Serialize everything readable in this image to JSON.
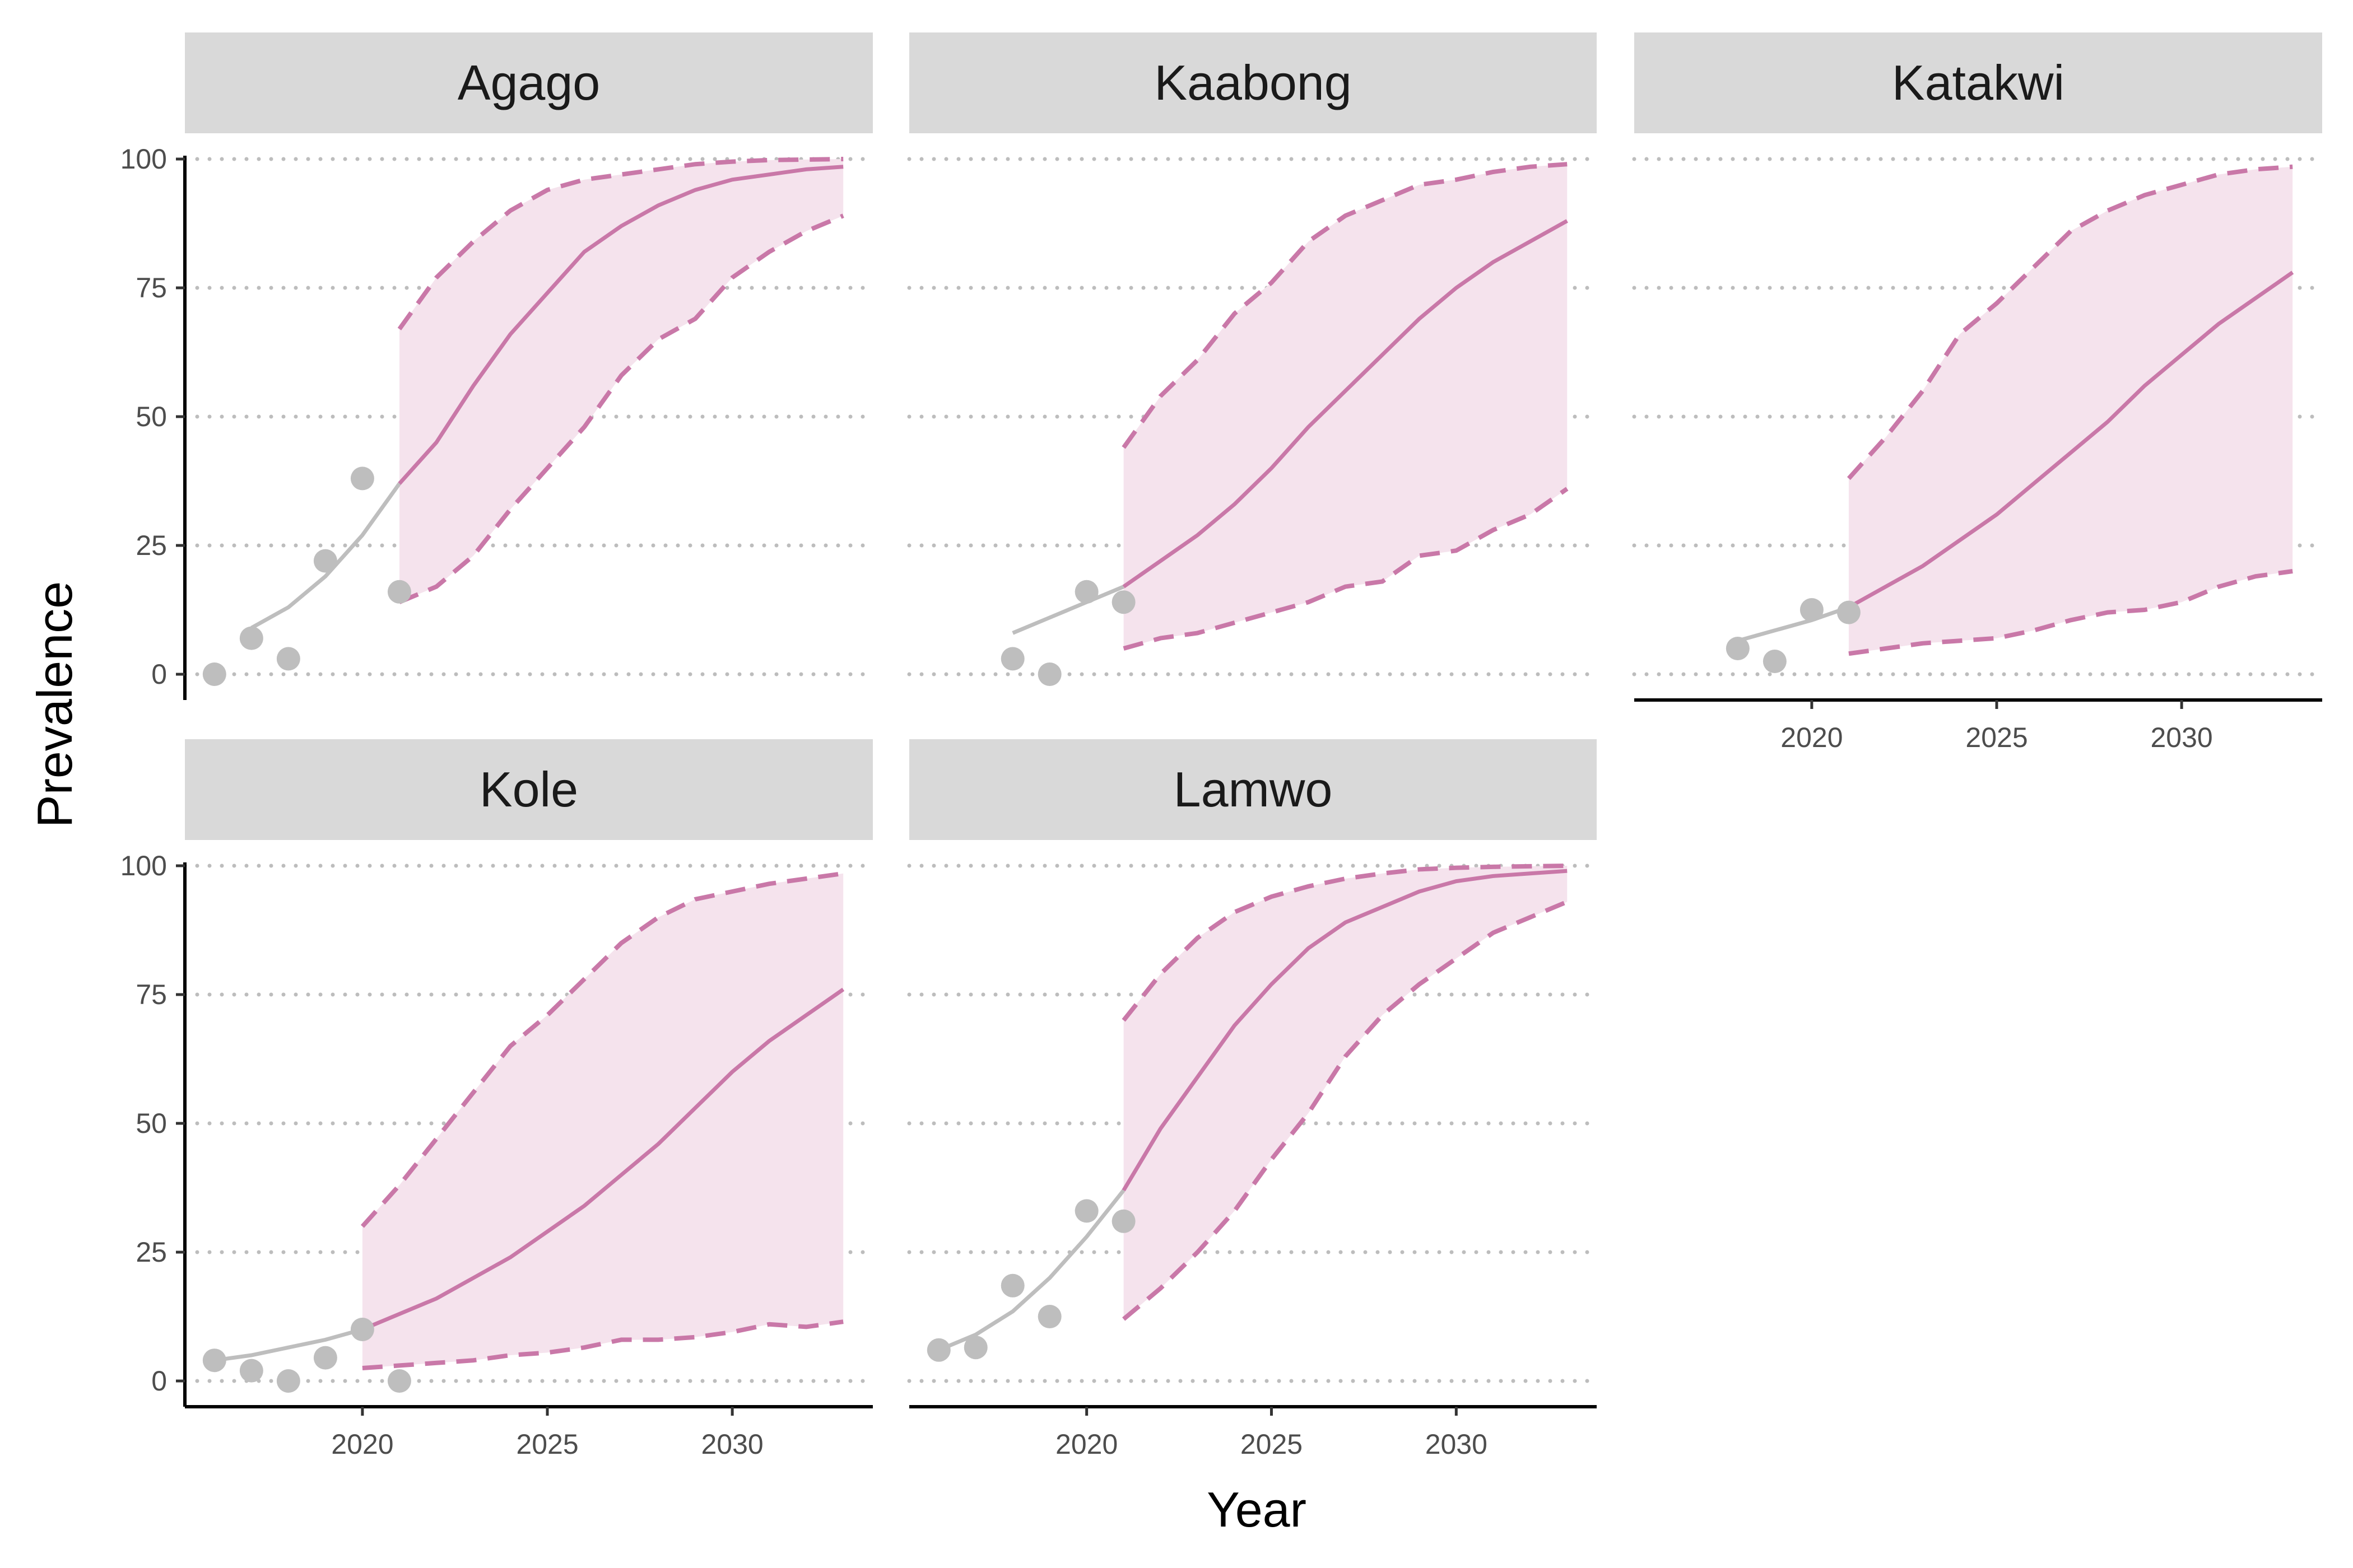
{
  "chart_data": {
    "type": "line",
    "xlabel": "Year",
    "ylabel": "Prevalence",
    "xlim": [
      2015.2,
      2033.8
    ],
    "ylim": [
      -5,
      105
    ],
    "x_ticks": [
      2020,
      2025,
      2030
    ],
    "y_ticks": [
      0,
      25,
      50,
      75,
      100
    ],
    "grid": "horizontal dotted",
    "colors": {
      "observed": "#bebebe",
      "projection": "#c978a8",
      "ribbon": "#f5e3ed",
      "strip": "#d9d9d9",
      "grid": "#bdbdbd"
    },
    "panels": [
      {
        "name": "Agago",
        "observed_points": [
          [
            2016,
            0
          ],
          [
            2017,
            7
          ],
          [
            2018,
            3
          ],
          [
            2019,
            22
          ],
          [
            2020,
            38
          ],
          [
            2021,
            16
          ]
        ],
        "fitted": [
          [
            2017,
            9
          ],
          [
            2018,
            13
          ],
          [
            2019,
            19
          ],
          [
            2020,
            27
          ],
          [
            2021,
            37
          ]
        ],
        "projection": {
          "x": [
            2021,
            2022,
            2023,
            2024,
            2025,
            2026,
            2027,
            2028,
            2029,
            2030,
            2031,
            2032,
            2033
          ],
          "median": [
            37,
            45,
            56,
            66,
            74,
            82,
            87,
            91,
            94,
            96,
            97,
            98,
            98.5
          ],
          "lower": [
            14,
            17,
            23,
            32,
            40,
            48,
            58,
            65,
            69,
            77,
            82,
            86,
            89
          ],
          "upper": [
            67,
            77,
            84,
            90,
            94,
            96,
            97,
            98,
            99,
            99.5,
            99.8,
            99.9,
            100
          ]
        }
      },
      {
        "name": "Kaabong",
        "observed_points": [
          [
            2018,
            3
          ],
          [
            2019,
            0
          ],
          [
            2020,
            16
          ],
          [
            2021,
            14
          ]
        ],
        "fitted": [
          [
            2018,
            8
          ],
          [
            2019,
            11
          ],
          [
            2020,
            14
          ],
          [
            2021,
            17
          ]
        ],
        "projection": {
          "x": [
            2021,
            2022,
            2023,
            2024,
            2025,
            2026,
            2027,
            2028,
            2029,
            2030,
            2031,
            2032,
            2033
          ],
          "median": [
            17,
            22,
            27,
            33,
            40,
            48,
            55,
            62,
            69,
            75,
            80,
            84,
            88
          ],
          "lower": [
            5,
            7,
            8,
            10,
            12,
            14,
            17,
            18,
            23,
            24,
            28,
            31,
            36
          ],
          "upper": [
            44,
            54,
            61,
            70,
            76,
            84,
            89,
            92,
            95,
            96,
            97.5,
            98.5,
            99
          ]
        }
      },
      {
        "name": "Katakwi",
        "observed_points": [
          [
            2018,
            5
          ],
          [
            2019,
            2.5
          ],
          [
            2020,
            12.5
          ],
          [
            2021,
            12
          ]
        ],
        "fitted": [
          [
            2018,
            6.5
          ],
          [
            2019,
            8.5
          ],
          [
            2020,
            10.5
          ],
          [
            2021,
            13
          ]
        ],
        "projection": {
          "x": [
            2021,
            2022,
            2023,
            2024,
            2025,
            2026,
            2027,
            2028,
            2029,
            2030,
            2031,
            2032,
            2033
          ],
          "median": [
            13,
            17,
            21,
            26,
            31,
            37,
            43,
            49,
            56,
            62,
            68,
            73,
            78
          ],
          "lower": [
            4,
            5,
            6,
            6.5,
            7,
            8.5,
            10.5,
            12,
            12.5,
            14,
            17,
            19,
            20
          ],
          "upper": [
            38,
            46,
            55,
            66,
            72,
            79,
            86,
            90,
            93,
            95,
            97,
            98,
            98.5
          ]
        }
      },
      {
        "name": "Kole",
        "observed_points": [
          [
            2016,
            4
          ],
          [
            2017,
            2
          ],
          [
            2018,
            0
          ],
          [
            2019,
            4.5
          ],
          [
            2020,
            10
          ],
          [
            2021,
            0
          ]
        ],
        "fitted": [
          [
            2016,
            4
          ],
          [
            2017,
            5
          ],
          [
            2018,
            6.5
          ],
          [
            2019,
            8
          ],
          [
            2020,
            10
          ]
        ],
        "projection": {
          "x": [
            2020,
            2021,
            2022,
            2023,
            2024,
            2025,
            2026,
            2027,
            2028,
            2029,
            2030,
            2031,
            2032,
            2033
          ],
          "median": [
            10,
            13,
            16,
            20,
            24,
            29,
            34,
            40,
            46,
            53,
            60,
            66,
            71,
            76
          ],
          "lower": [
            2.5,
            3,
            3.5,
            4,
            5,
            5.5,
            6.5,
            8,
            8,
            8.5,
            9.5,
            11,
            10.5,
            11.5
          ],
          "upper": [
            30,
            38,
            47,
            56,
            65,
            71,
            78,
            85,
            90,
            93.5,
            95,
            96.5,
            97.5,
            98.5
          ]
        }
      },
      {
        "name": "Lamwo",
        "observed_points": [
          [
            2016,
            6
          ],
          [
            2017,
            6.5
          ],
          [
            2018,
            18.5
          ],
          [
            2019,
            12.5
          ],
          [
            2020,
            33
          ],
          [
            2021,
            31
          ]
        ],
        "fitted": [
          [
            2016,
            6
          ],
          [
            2017,
            9
          ],
          [
            2018,
            13.5
          ],
          [
            2019,
            20
          ],
          [
            2020,
            28
          ],
          [
            2021,
            37
          ]
        ],
        "projection": {
          "x": [
            2021,
            2022,
            2023,
            2024,
            2025,
            2026,
            2027,
            2028,
            2029,
            2030,
            2031,
            2032,
            2033
          ],
          "median": [
            37,
            49,
            59,
            69,
            77,
            84,
            89,
            92,
            95,
            97,
            98,
            98.5,
            99
          ],
          "lower": [
            12,
            18,
            25,
            33,
            43,
            52,
            63,
            71,
            77,
            82,
            87,
            90,
            93
          ],
          "upper": [
            70,
            79,
            86,
            91,
            94,
            96,
            97.5,
            98.5,
            99.3,
            99.6,
            99.8,
            99.9,
            100
          ]
        }
      }
    ]
  }
}
